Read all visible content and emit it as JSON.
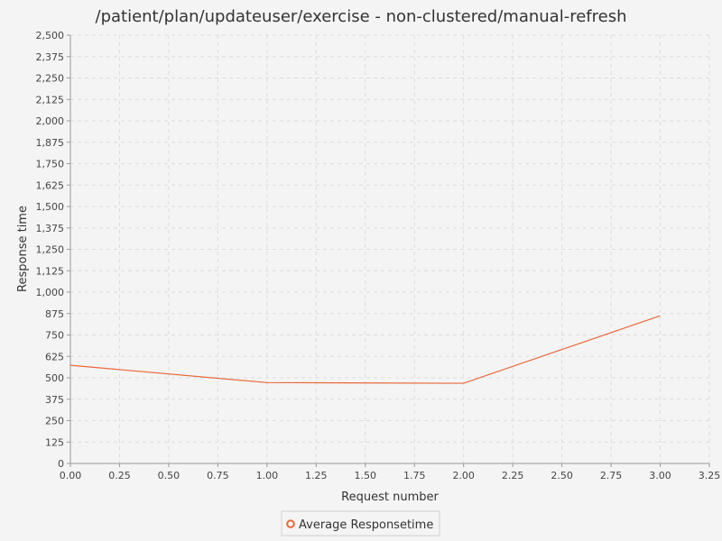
{
  "chart_data": {
    "type": "line",
    "title": "/patient/plan/updateuser/exercise - non-clustered/manual-refresh",
    "xlabel": "Request number",
    "ylabel": "Response time",
    "xlim": [
      0,
      3.25
    ],
    "ylim": [
      0,
      2500
    ],
    "x_ticks": [
      "0.00",
      "0.25",
      "0.50",
      "0.75",
      "1.00",
      "1.25",
      "1.50",
      "1.75",
      "2.00",
      "2.25",
      "2.50",
      "2.75",
      "3.00",
      "3.25"
    ],
    "y_ticks": [
      "0",
      "125",
      "250",
      "375",
      "500",
      "625",
      "750",
      "875",
      "1,000",
      "1,125",
      "1,250",
      "1,375",
      "1,500",
      "1,625",
      "1,750",
      "1,875",
      "2,000",
      "2,125",
      "2,250",
      "2,375",
      "2,500"
    ],
    "grid": true,
    "legend_position": "bottom",
    "series": [
      {
        "name": "Average Responsetime",
        "color": "#e8683a",
        "x": [
          0,
          1,
          2,
          3
        ],
        "y": [
          573,
          472,
          468,
          862
        ]
      }
    ]
  }
}
